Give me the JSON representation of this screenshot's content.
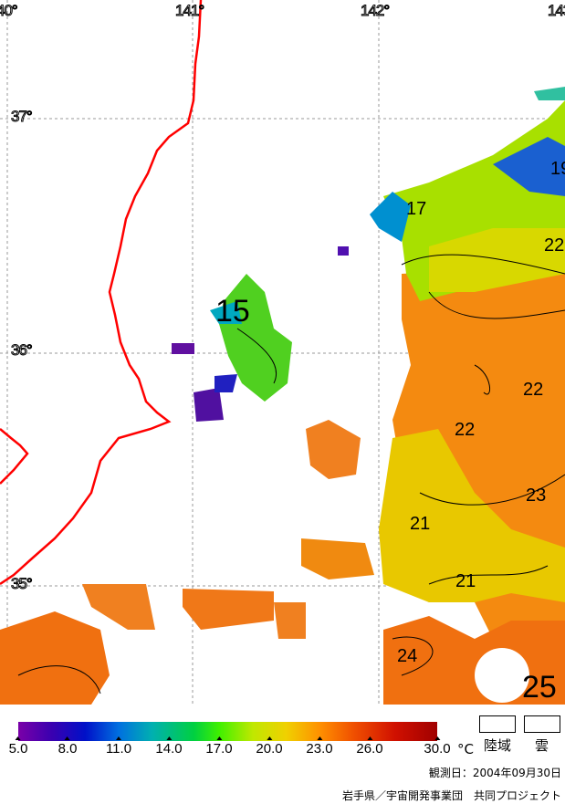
{
  "map": {
    "longitude_labels": [
      "40°",
      "141°",
      "142°",
      "143°"
    ],
    "latitude_labels": [
      "37°",
      "36°",
      "35°"
    ],
    "contour_labels": [
      "17",
      "19",
      "22",
      "15",
      "22",
      "22",
      "23",
      "21",
      "21",
      "24",
      "25"
    ],
    "coastline_color": "#ff0000"
  },
  "legend": {
    "ticks": [
      "5.0",
      "8.0",
      "11.0",
      "14.0",
      "17.0",
      "20.0",
      "23.0",
      "26.0",
      "30.0"
    ],
    "unit": "°C",
    "land_label": "陸域",
    "cloud_label": "雲"
  },
  "footer": {
    "observation_date": "観測日：2004年09月30日",
    "credit": "岩手県／宇宙開発事業団　共同プロジェクト"
  }
}
